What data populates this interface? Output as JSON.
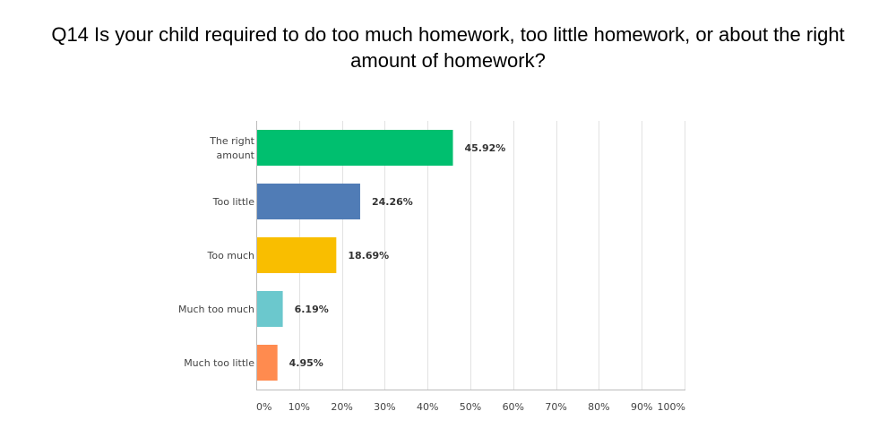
{
  "title_lines": [
    "Q14 Is your child required to do too much homework, too little homework, or about the right",
    "amount of homework?"
  ],
  "chart_data": {
    "type": "bar",
    "orientation": "horizontal",
    "title": "Q14 Is your child required to do too much homework, too little homework, or about the right amount of homework?",
    "xlabel": "",
    "ylabel": "",
    "categories": [
      [
        "The right",
        "amount"
      ],
      [
        "Too little"
      ],
      [
        "Too much"
      ],
      [
        "Much too much"
      ],
      [
        "Much too little"
      ]
    ],
    "values": [
      45.92,
      24.26,
      18.69,
      6.19,
      4.95
    ],
    "value_labels": [
      "45.92%",
      "24.26%",
      "18.69%",
      "6.19%",
      "4.95%"
    ],
    "colors": [
      "#00bf6f",
      "#507cb6",
      "#f9be00",
      "#6bc8cd",
      "#ff8b4f"
    ],
    "xlim": [
      0,
      100
    ],
    "ticks": [
      0,
      10,
      20,
      30,
      40,
      50,
      60,
      70,
      80,
      90,
      100
    ],
    "tick_labels": [
      "0%",
      "10%",
      "20%",
      "30%",
      "40%",
      "50%",
      "60%",
      "70%",
      "80%",
      "90%",
      "100%"
    ],
    "grid": true
  }
}
